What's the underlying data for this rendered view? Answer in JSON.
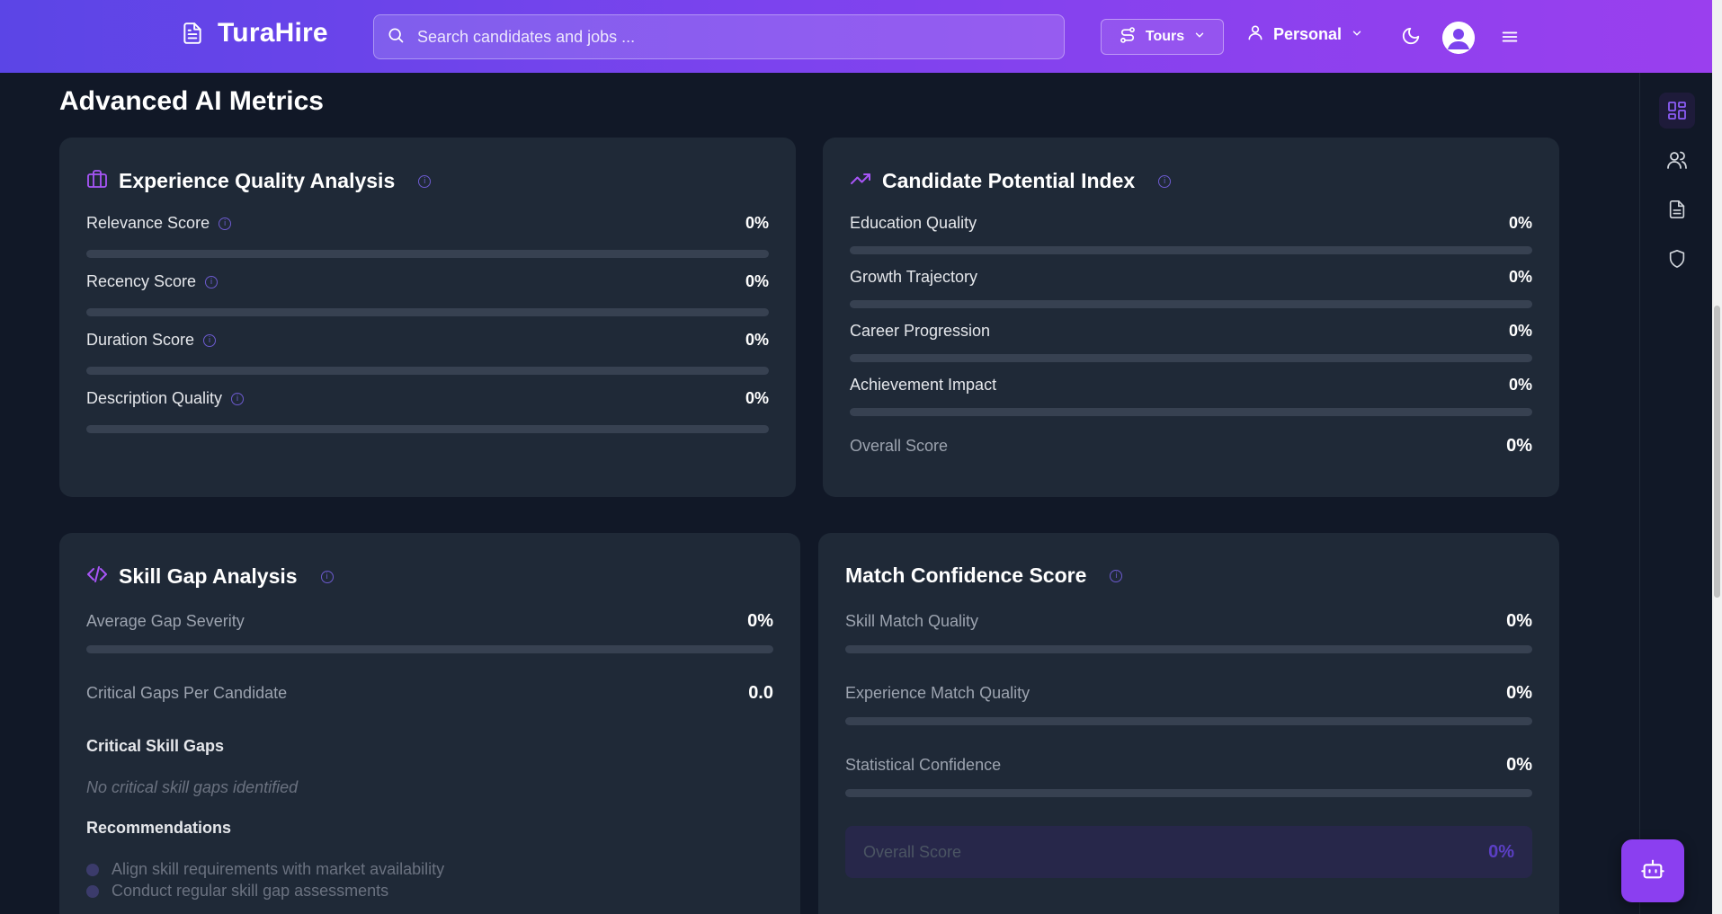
{
  "header": {
    "brand": "TuraHire",
    "search_placeholder": "Search candidates and jobs ...",
    "tours_label": "Tours",
    "workspace_label": "Personal"
  },
  "page": {
    "title": "Advanced AI Metrics"
  },
  "experience_quality": {
    "title": "Experience Quality Analysis",
    "metrics": [
      {
        "label": "Relevance Score",
        "value": "0%",
        "fill": 0
      },
      {
        "label": "Recency Score",
        "value": "0%",
        "fill": 0
      },
      {
        "label": "Duration Score",
        "value": "0%",
        "fill": 0
      },
      {
        "label": "Description Quality",
        "value": "0%",
        "fill": 0
      }
    ]
  },
  "candidate_potential": {
    "title": "Candidate Potential Index",
    "metrics": [
      {
        "label": "Education Quality",
        "value": "0%",
        "fill": 0
      },
      {
        "label": "Growth Trajectory",
        "value": "0%",
        "fill": 0
      },
      {
        "label": "Career Progression",
        "value": "0%",
        "fill": 0
      },
      {
        "label": "Achievement Impact",
        "value": "0%",
        "fill": 0
      }
    ],
    "overall_label": "Overall Score",
    "overall_value": "0%"
  },
  "skill_gap": {
    "title": "Skill Gap Analysis",
    "avg_gap_label": "Average Gap Severity",
    "avg_gap_value": "0%",
    "avg_gap_fill": 0,
    "critical_per_candidate_label": "Critical Gaps Per Candidate",
    "critical_per_candidate_value": "0.0",
    "critical_gaps_heading": "Critical Skill Gaps",
    "critical_gaps_empty": "No critical skill gaps identified",
    "recommendations_heading": "Recommendations",
    "recommendations": [
      "Align skill requirements with market availability",
      "Conduct regular skill gap assessments"
    ]
  },
  "match_confidence": {
    "title": "Match Confidence Score",
    "metrics": [
      {
        "label": "Skill Match Quality",
        "value": "0%",
        "fill": 0
      },
      {
        "label": "Experience Match Quality",
        "value": "0%",
        "fill": 0
      },
      {
        "label": "Statistical Confidence",
        "value": "0%",
        "fill": 0
      }
    ],
    "overall_label": "Overall Score",
    "overall_value": "0%"
  },
  "colors": {
    "accent": "#7c3aed",
    "header_start": "#5b45e6",
    "header_end": "#9a3fee",
    "card_bg": "#1f2937",
    "page_bg": "#111827"
  }
}
